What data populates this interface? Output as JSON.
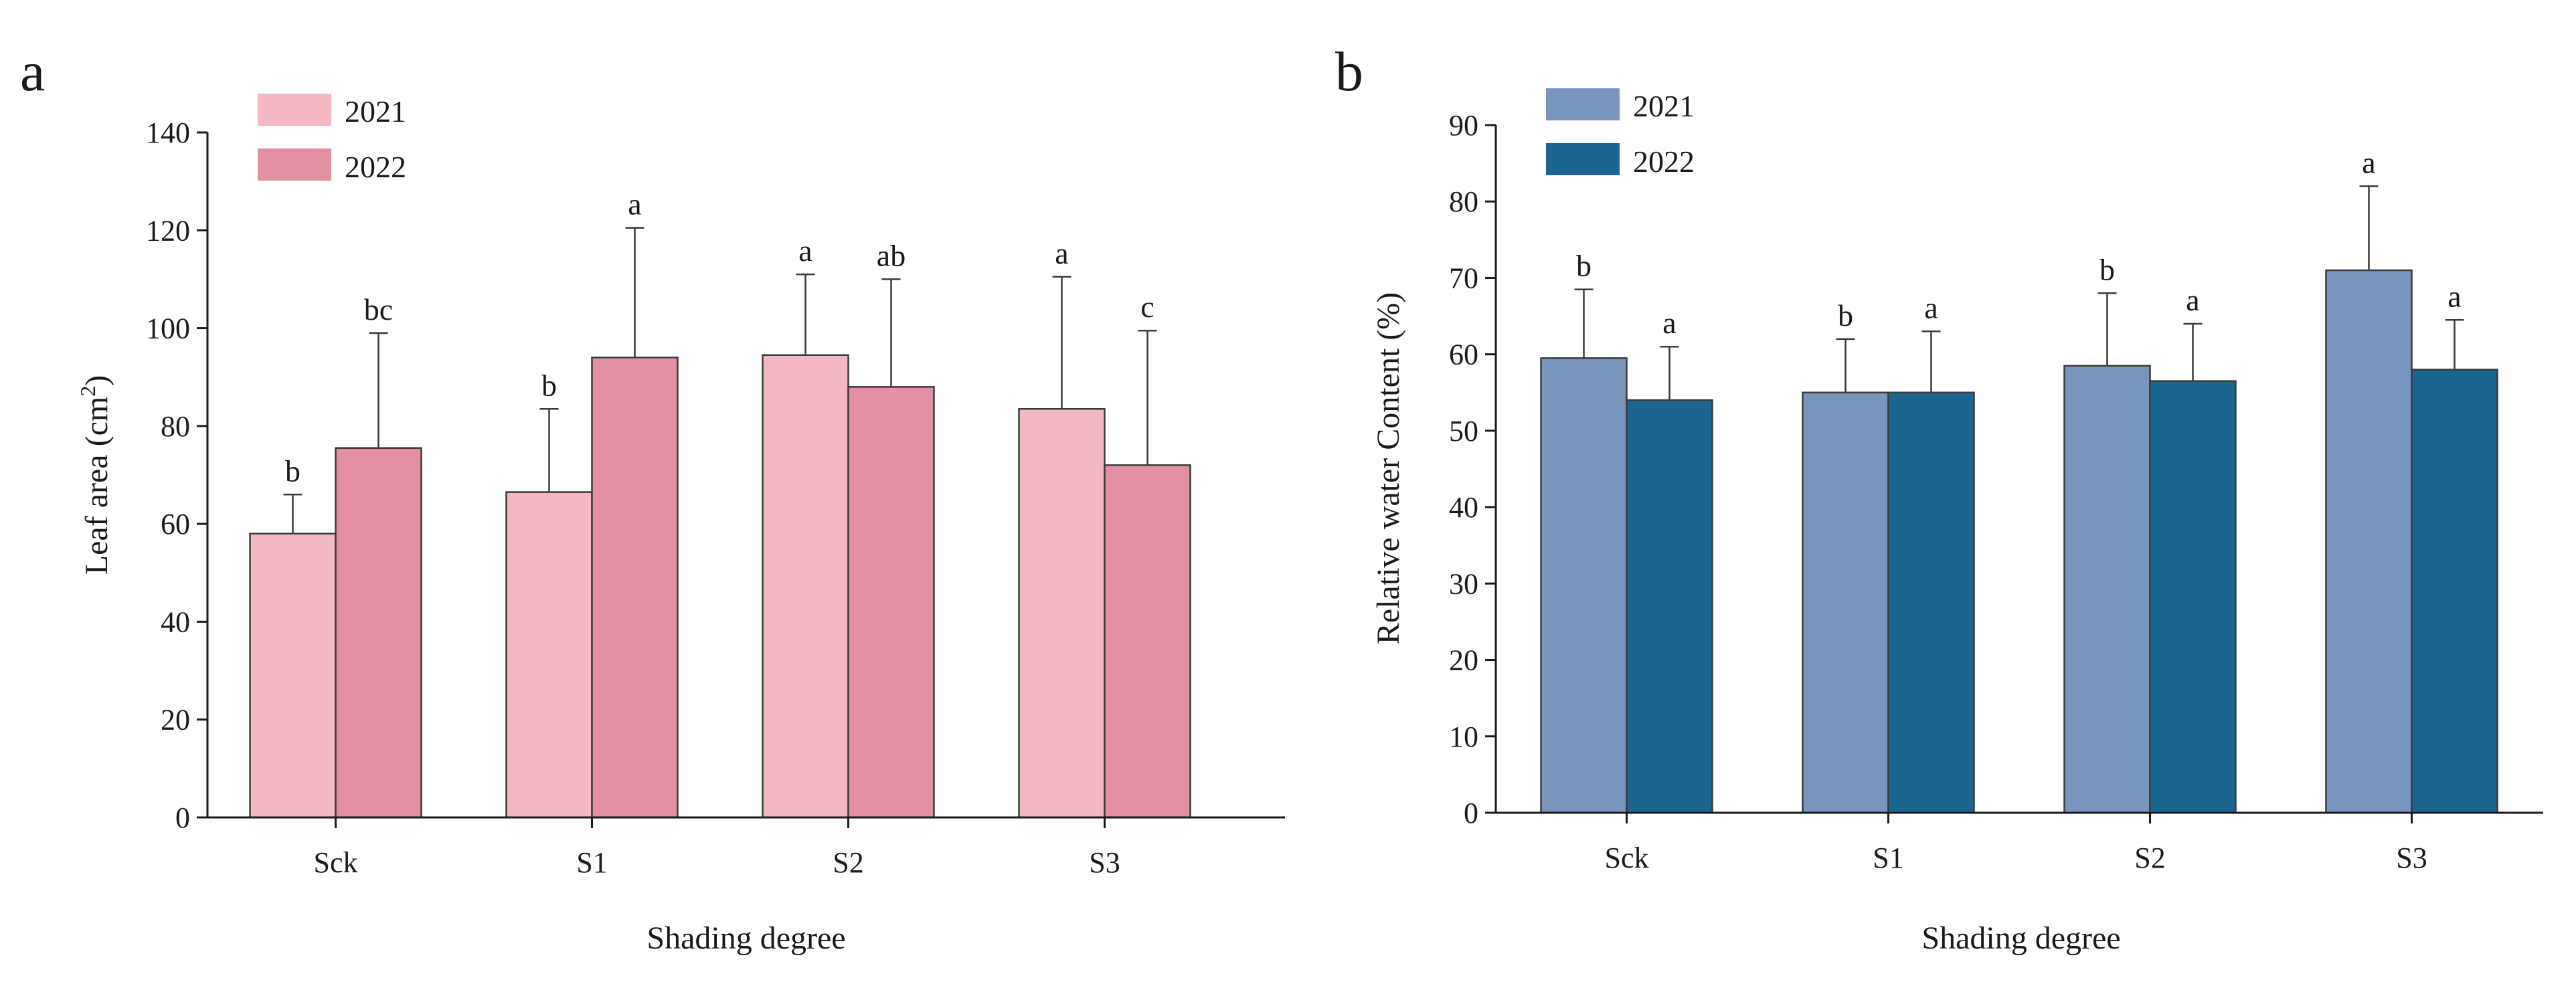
{
  "chart_data": [
    {
      "panel_label": "a",
      "type": "bar",
      "xlabel": "Shading degree",
      "ylabel_main": "Leaf area (cm",
      "ylabel_sup": "2",
      "ylabel_close": ")",
      "ylim": [
        0,
        140
      ],
      "ytick_step": 20,
      "categories": [
        "Sck",
        "S1",
        "S2",
        "S3"
      ],
      "series": [
        {
          "name": "2021",
          "color": "#f4b8c3",
          "values": [
            58,
            66.5,
            94.5,
            83.5
          ],
          "errors": [
            8,
            17,
            16.5,
            27
          ],
          "letters": [
            "b",
            "b",
            "a",
            "a"
          ]
        },
        {
          "name": "2022",
          "color": "#e38fa2",
          "values": [
            75.5,
            94,
            88,
            72
          ],
          "errors": [
            23.5,
            26.5,
            22,
            27.5
          ],
          "letters": [
            "bc",
            "a",
            "ab",
            "c"
          ]
        }
      ],
      "legend_position": "top-left"
    },
    {
      "panel_label": "b",
      "type": "bar",
      "xlabel": "Shading degree",
      "ylabel_main": "Relative water Content (%)",
      "ylim": [
        0,
        90
      ],
      "ytick_step": 10,
      "categories": [
        "Sck",
        "S1",
        "S2",
        "S3"
      ],
      "series": [
        {
          "name": "2021",
          "color": "#7895bd",
          "values": [
            59.5,
            55,
            58.5,
            71
          ],
          "errors": [
            9,
            7,
            9.5,
            11
          ],
          "letters": [
            "b",
            "b",
            "b",
            "a"
          ]
        },
        {
          "name": "2022",
          "color": "#1b6690",
          "values": [
            54,
            55,
            56.5,
            58
          ],
          "errors": [
            7,
            8,
            7.5,
            6.5
          ],
          "letters": [
            "a",
            "a",
            "a",
            "a"
          ]
        }
      ],
      "legend_position": "top-left"
    }
  ]
}
